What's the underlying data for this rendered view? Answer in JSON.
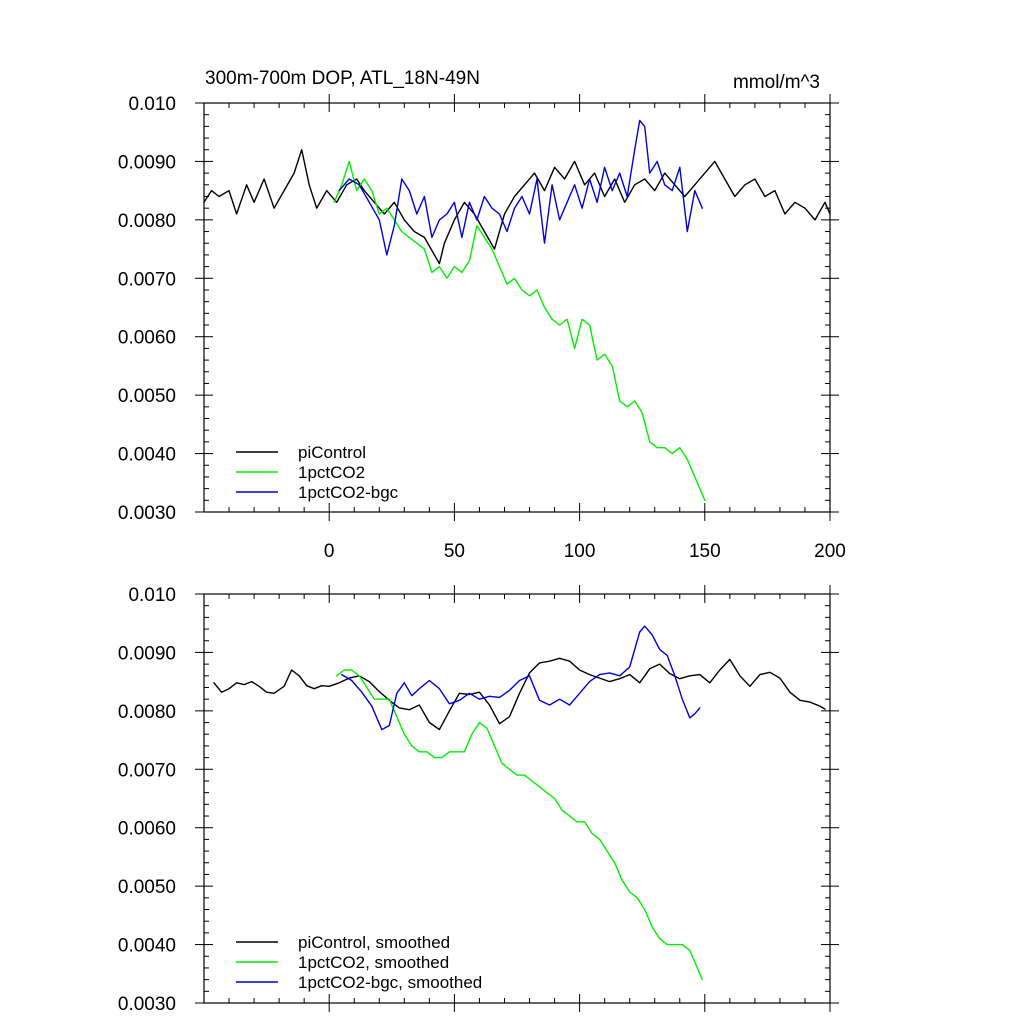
{
  "chart_data": [
    {
      "type": "line",
      "title": "300m-700m DOP, ATL_18N-49N",
      "units": "mmol/m^3",
      "xlim": [
        -50,
        200
      ],
      "ylim": [
        0.003,
        0.01
      ],
      "xticks": [
        0,
        50,
        100,
        150,
        200
      ],
      "xtick_labels": [
        "0",
        "50",
        "100",
        "150",
        "200"
      ],
      "yticks": [
        0.003,
        0.004,
        0.005,
        0.006,
        0.007,
        0.008,
        0.009,
        0.01
      ],
      "ytick_labels": [
        "0.0030",
        "0.0040",
        "0.0050",
        "0.0060",
        "0.0070",
        "0.0080",
        "0.0090",
        "0.010"
      ],
      "legend_position": "lower-left",
      "series": [
        {
          "name": "piControl",
          "color": "#000000",
          "x": [
            -50,
            -47,
            -44,
            -40,
            -37,
            -33,
            -30,
            -26,
            -22,
            -18,
            -14,
            -11,
            -8,
            -5,
            -1,
            3,
            7,
            11,
            14,
            18,
            22,
            26,
            30,
            34,
            38,
            42,
            44,
            46,
            50,
            54,
            58,
            62,
            66,
            70,
            74,
            78,
            82,
            86,
            90,
            94,
            98,
            102,
            106,
            110,
            114,
            118,
            122,
            126,
            130,
            134,
            138,
            142,
            146,
            150,
            154,
            158,
            162,
            166,
            170,
            174,
            178,
            182,
            186,
            190,
            194,
            198,
            200
          ],
          "y": [
            0.0083,
            0.0085,
            0.0084,
            0.0085,
            0.0081,
            0.0086,
            0.0083,
            0.0087,
            0.0082,
            0.0085,
            0.0088,
            0.0092,
            0.0086,
            0.0082,
            0.0085,
            0.0083,
            0.0086,
            0.0087,
            0.0085,
            0.0083,
            0.0081,
            0.0083,
            0.008,
            0.0078,
            0.0077,
            0.0074,
            0.00725,
            0.0076,
            0.008,
            0.0083,
            0.0081,
            0.0078,
            0.0075,
            0.0081,
            0.0084,
            0.0086,
            0.0088,
            0.0085,
            0.0089,
            0.0087,
            0.009,
            0.0086,
            0.0088,
            0.0084,
            0.0087,
            0.0083,
            0.0086,
            0.0087,
            0.0085,
            0.0088,
            0.0086,
            0.0084,
            0.0086,
            0.0088,
            0.009,
            0.0087,
            0.0084,
            0.0086,
            0.0087,
            0.0084,
            0.0085,
            0.0081,
            0.0083,
            0.0082,
            0.008,
            0.0083,
            0.0081
          ]
        },
        {
          "name": "1pctCO2",
          "color": "#00ee00",
          "x": [
            2,
            5,
            8,
            11,
            14,
            17,
            20,
            23,
            26,
            29,
            32,
            35,
            38,
            41,
            44,
            47,
            50,
            53,
            56,
            59,
            62,
            65,
            68,
            71,
            74,
            77,
            80,
            83,
            86,
            89,
            92,
            95,
            98,
            101,
            104,
            107,
            110,
            113,
            116,
            119,
            122,
            125,
            128,
            131,
            134,
            137,
            140,
            143,
            146,
            149,
            150
          ],
          "y": [
            0.0083,
            0.0086,
            0.009,
            0.0085,
            0.0087,
            0.0085,
            0.0081,
            0.0082,
            0.008,
            0.0078,
            0.0077,
            0.0076,
            0.0075,
            0.0071,
            0.0072,
            0.007,
            0.0072,
            0.0071,
            0.0073,
            0.0079,
            0.0077,
            0.0075,
            0.0072,
            0.0069,
            0.007,
            0.0068,
            0.0067,
            0.0068,
            0.0065,
            0.0063,
            0.0062,
            0.0063,
            0.0058,
            0.0063,
            0.0062,
            0.0056,
            0.0057,
            0.0055,
            0.0049,
            0.0048,
            0.0049,
            0.0047,
            0.0042,
            0.0041,
            0.0041,
            0.004,
            0.0041,
            0.0039,
            0.0036,
            0.0033,
            0.0032
          ]
        },
        {
          "name": "1pctCO2-bgc",
          "color": "#0000dd",
          "x": [
            4,
            8,
            12,
            16,
            20,
            23,
            26,
            29,
            32,
            35,
            38,
            41,
            44,
            47,
            50,
            53,
            56,
            59,
            62,
            65,
            68,
            71,
            74,
            77,
            80,
            83,
            86,
            89,
            92,
            95,
            98,
            101,
            104,
            107,
            110,
            113,
            116,
            119,
            122,
            124,
            126,
            128,
            131,
            134,
            137,
            140,
            143,
            146,
            149
          ],
          "y": [
            0.0085,
            0.0087,
            0.0086,
            0.0083,
            0.008,
            0.0074,
            0.0079,
            0.0087,
            0.0085,
            0.0081,
            0.0084,
            0.0077,
            0.008,
            0.0081,
            0.0083,
            0.0077,
            0.0083,
            0.008,
            0.0084,
            0.0082,
            0.0081,
            0.0078,
            0.0082,
            0.0084,
            0.0081,
            0.0087,
            0.0076,
            0.0086,
            0.008,
            0.0083,
            0.0086,
            0.0082,
            0.0087,
            0.0083,
            0.0089,
            0.0085,
            0.0088,
            0.0084,
            0.0092,
            0.0097,
            0.0096,
            0.0088,
            0.009,
            0.0086,
            0.0085,
            0.0089,
            0.0078,
            0.0085,
            0.0082
          ]
        }
      ]
    },
    {
      "type": "line",
      "title": "",
      "units": "",
      "xlim": [
        -50,
        200
      ],
      "ylim": [
        0.003,
        0.01
      ],
      "xticks": [
        0,
        50,
        100,
        150,
        200
      ],
      "xtick_labels": [],
      "yticks": [
        0.003,
        0.004,
        0.005,
        0.006,
        0.007,
        0.008,
        0.009,
        0.01
      ],
      "ytick_labels": [
        "0.0030",
        "0.0040",
        "0.0050",
        "0.0060",
        "0.0070",
        "0.0080",
        "0.0090",
        "0.010"
      ],
      "legend_position": "lower-left",
      "series": [
        {
          "name": "piControl, smoothed",
          "color": "#000000",
          "x": [
            -46,
            -43,
            -40,
            -37,
            -34,
            -31,
            -28,
            -25,
            -22,
            -18,
            -15,
            -12,
            -9,
            -6,
            -3,
            0,
            4,
            8,
            12,
            16,
            20,
            24,
            28,
            32,
            36,
            40,
            44,
            48,
            52,
            56,
            60,
            64,
            68,
            72,
            76,
            80,
            84,
            88,
            92,
            96,
            100,
            104,
            108,
            112,
            116,
            120,
            124,
            128,
            132,
            136,
            140,
            144,
            148,
            152,
            156,
            160,
            164,
            168,
            172,
            176,
            180,
            184,
            188,
            192,
            196,
            198
          ],
          "y": [
            0.00848,
            0.00832,
            0.00838,
            0.00848,
            0.00845,
            0.0085,
            0.00842,
            0.00832,
            0.0083,
            0.00842,
            0.0087,
            0.0086,
            0.00843,
            0.00838,
            0.00843,
            0.00842,
            0.00848,
            0.00856,
            0.0086,
            0.0085,
            0.00833,
            0.00818,
            0.00805,
            0.00802,
            0.0081,
            0.0078,
            0.00768,
            0.008,
            0.0083,
            0.00828,
            0.00832,
            0.0081,
            0.00778,
            0.0079,
            0.0083,
            0.00865,
            0.00882,
            0.00885,
            0.0089,
            0.00885,
            0.0087,
            0.00862,
            0.00856,
            0.0085,
            0.00855,
            0.00862,
            0.00848,
            0.00872,
            0.0088,
            0.00864,
            0.00855,
            0.0086,
            0.00862,
            0.00848,
            0.0087,
            0.00888,
            0.0086,
            0.00842,
            0.00862,
            0.00866,
            0.00856,
            0.00832,
            0.00818,
            0.00815,
            0.00808,
            0.00803
          ]
        },
        {
          "name": "1pctCO2, smoothed",
          "color": "#00ee00",
          "x": [
            3,
            6,
            9,
            12,
            15,
            18,
            21,
            24,
            27,
            30,
            33,
            36,
            39,
            42,
            45,
            48,
            51,
            54,
            57,
            60,
            63,
            66,
            69,
            72,
            75,
            78,
            81,
            84,
            87,
            90,
            93,
            96,
            99,
            102,
            105,
            108,
            111,
            114,
            117,
            120,
            123,
            126,
            129,
            132,
            135,
            138,
            141,
            144,
            147,
            149
          ],
          "y": [
            0.0086,
            0.0087,
            0.0087,
            0.0086,
            0.0084,
            0.0082,
            0.0082,
            0.0082,
            0.0079,
            0.0076,
            0.0074,
            0.0073,
            0.0073,
            0.0072,
            0.0072,
            0.0073,
            0.0073,
            0.0073,
            0.0076,
            0.0078,
            0.0077,
            0.0074,
            0.0071,
            0.007,
            0.0069,
            0.0069,
            0.0068,
            0.0067,
            0.0066,
            0.0065,
            0.0063,
            0.0062,
            0.0061,
            0.0061,
            0.0059,
            0.0058,
            0.0056,
            0.0054,
            0.0051,
            0.0049,
            0.0048,
            0.0046,
            0.0043,
            0.0041,
            0.004,
            0.004,
            0.004,
            0.0039,
            0.0036,
            0.0034
          ]
        },
        {
          "name": "1pctCO2-bgc, smoothed",
          "color": "#0000dd",
          "x": [
            5,
            9,
            13,
            17,
            21,
            24,
            27,
            30,
            33,
            36,
            40,
            44,
            48,
            52,
            56,
            60,
            64,
            68,
            72,
            76,
            80,
            84,
            88,
            92,
            96,
            100,
            104,
            108,
            112,
            116,
            120,
            122,
            124,
            126,
            129,
            132,
            135,
            138,
            141,
            144,
            146,
            148
          ],
          "y": [
            0.00862,
            0.00852,
            0.00832,
            0.00808,
            0.00768,
            0.00775,
            0.0083,
            0.00848,
            0.00826,
            0.00838,
            0.00852,
            0.00838,
            0.00812,
            0.00818,
            0.0083,
            0.0082,
            0.00825,
            0.00823,
            0.00835,
            0.00852,
            0.0086,
            0.00818,
            0.0081,
            0.0082,
            0.0081,
            0.0083,
            0.0085,
            0.00862,
            0.00865,
            0.0086,
            0.00875,
            0.00905,
            0.00935,
            0.00945,
            0.0093,
            0.00905,
            0.00895,
            0.0086,
            0.0082,
            0.00788,
            0.00795,
            0.00805
          ]
        }
      ]
    }
  ]
}
